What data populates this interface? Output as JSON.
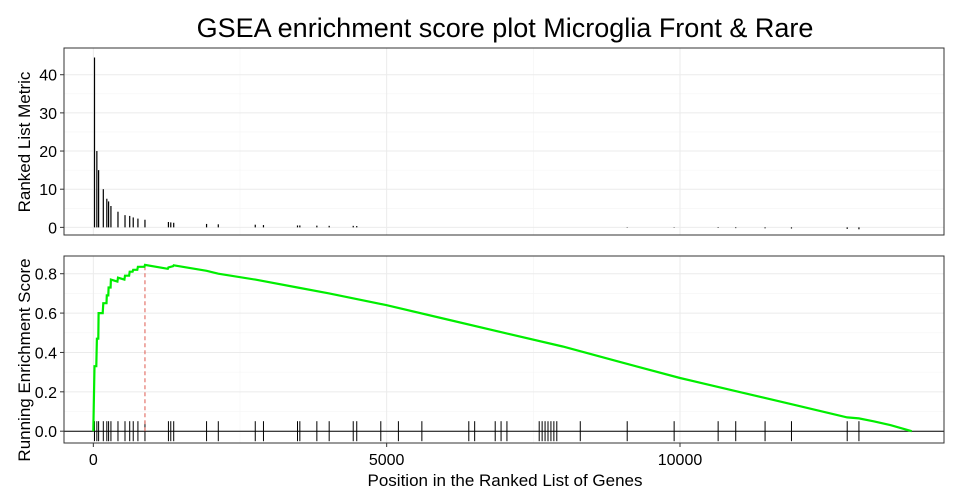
{
  "title": "GSEA enrichment score plot Microglia Front & Rare",
  "chart_data": [
    {
      "type": "bar",
      "panel": "top",
      "ylabel": "Ranked List Metric",
      "xlim": [
        -500,
        14500
      ],
      "ylim": [
        -2,
        47
      ],
      "yticks": [
        0,
        10,
        20,
        30,
        40
      ],
      "xticks": [
        0,
        5000,
        10000
      ],
      "grid": true,
      "bars": [
        {
          "x": 20,
          "y": 44.5
        },
        {
          "x": 60,
          "y": 20
        },
        {
          "x": 90,
          "y": 15
        },
        {
          "x": 170,
          "y": 10
        },
        {
          "x": 230,
          "y": 7.5
        },
        {
          "x": 260,
          "y": 6.8
        },
        {
          "x": 300,
          "y": 5.6
        },
        {
          "x": 420,
          "y": 4.1
        },
        {
          "x": 540,
          "y": 3.2
        },
        {
          "x": 620,
          "y": 3.0
        },
        {
          "x": 680,
          "y": 2.6
        },
        {
          "x": 760,
          "y": 2.3
        },
        {
          "x": 880,
          "y": 2.0
        },
        {
          "x": 1280,
          "y": 1.4
        },
        {
          "x": 1320,
          "y": 1.3
        },
        {
          "x": 1370,
          "y": 1.2
        },
        {
          "x": 1930,
          "y": 0.9
        },
        {
          "x": 2130,
          "y": 0.8
        },
        {
          "x": 2760,
          "y": 0.7
        },
        {
          "x": 2900,
          "y": 0.6
        },
        {
          "x": 3480,
          "y": 0.5
        },
        {
          "x": 3520,
          "y": 0.5
        },
        {
          "x": 3810,
          "y": 0.45
        },
        {
          "x": 4020,
          "y": 0.4
        },
        {
          "x": 4430,
          "y": 0.4
        },
        {
          "x": 4490,
          "y": 0.35
        },
        {
          "x": 9100,
          "y": -0.1
        },
        {
          "x": 9900,
          "y": -0.1
        },
        {
          "x": 10650,
          "y": -0.15
        },
        {
          "x": 10950,
          "y": -0.2
        },
        {
          "x": 11450,
          "y": -0.25
        },
        {
          "x": 11900,
          "y": -0.3
        },
        {
          "x": 12850,
          "y": -0.4
        },
        {
          "x": 13050,
          "y": -0.5
        }
      ]
    },
    {
      "type": "line",
      "panel": "bottom",
      "xlabel": "Position in the Ranked List of Genes",
      "ylabel": "Running Enrichment Score",
      "xlim": [
        -500,
        14500
      ],
      "ylim": [
        -0.06,
        0.89
      ],
      "yticks": [
        0.0,
        0.2,
        0.4,
        0.6,
        0.8
      ],
      "xticks": [
        0,
        5000,
        10000
      ],
      "xtick_labels": [
        "0",
        "5000",
        "10000"
      ],
      "grid": true,
      "line_color": "#00ee00",
      "peak_line_color": "#e05a4f",
      "peak_x": 880,
      "series": [
        {
          "values": [
            {
              "x": 0,
              "y": 0.0
            },
            {
              "x": 20,
              "y": 0.33
            },
            {
              "x": 50,
              "y": 0.33
            },
            {
              "x": 60,
              "y": 0.47
            },
            {
              "x": 85,
              "y": 0.47
            },
            {
              "x": 90,
              "y": 0.6
            },
            {
              "x": 160,
              "y": 0.6
            },
            {
              "x": 170,
              "y": 0.65
            },
            {
              "x": 225,
              "y": 0.65
            },
            {
              "x": 230,
              "y": 0.69
            },
            {
              "x": 255,
              "y": 0.69
            },
            {
              "x": 260,
              "y": 0.73
            },
            {
              "x": 295,
              "y": 0.73
            },
            {
              "x": 300,
              "y": 0.77
            },
            {
              "x": 410,
              "y": 0.76
            },
            {
              "x": 420,
              "y": 0.78
            },
            {
              "x": 530,
              "y": 0.77
            },
            {
              "x": 540,
              "y": 0.79
            },
            {
              "x": 610,
              "y": 0.79
            },
            {
              "x": 620,
              "y": 0.81
            },
            {
              "x": 670,
              "y": 0.81
            },
            {
              "x": 680,
              "y": 0.82
            },
            {
              "x": 750,
              "y": 0.82
            },
            {
              "x": 760,
              "y": 0.835
            },
            {
              "x": 870,
              "y": 0.835
            },
            {
              "x": 880,
              "y": 0.845
            },
            {
              "x": 1270,
              "y": 0.825
            },
            {
              "x": 1280,
              "y": 0.832
            },
            {
              "x": 1360,
              "y": 0.838
            },
            {
              "x": 1370,
              "y": 0.843
            },
            {
              "x": 1930,
              "y": 0.815
            },
            {
              "x": 2130,
              "y": 0.8
            },
            {
              "x": 2760,
              "y": 0.77
            },
            {
              "x": 3480,
              "y": 0.73
            },
            {
              "x": 4020,
              "y": 0.7
            },
            {
              "x": 5000,
              "y": 0.64
            },
            {
              "x": 6000,
              "y": 0.57
            },
            {
              "x": 7000,
              "y": 0.5
            },
            {
              "x": 8000,
              "y": 0.43
            },
            {
              "x": 9000,
              "y": 0.35
            },
            {
              "x": 10000,
              "y": 0.27
            },
            {
              "x": 11000,
              "y": 0.2
            },
            {
              "x": 12000,
              "y": 0.13
            },
            {
              "x": 12850,
              "y": 0.07
            },
            {
              "x": 13050,
              "y": 0.065
            },
            {
              "x": 13300,
              "y": 0.05
            },
            {
              "x": 13600,
              "y": 0.03
            },
            {
              "x": 13950,
              "y": 0.0
            }
          ]
        }
      ],
      "gene_hits_x": [
        20,
        60,
        90,
        170,
        230,
        260,
        300,
        420,
        540,
        620,
        680,
        760,
        880,
        1280,
        1320,
        1370,
        1930,
        2130,
        2760,
        2900,
        3480,
        3520,
        3810,
        4020,
        4430,
        4490,
        4900,
        5200,
        5600,
        6400,
        6500,
        6850,
        6950,
        7050,
        7600,
        7650,
        7700,
        7750,
        7800,
        7850,
        7900,
        8300,
        9100,
        9900,
        10650,
        10950,
        11450,
        11900,
        12850,
        13050
      ]
    }
  ]
}
